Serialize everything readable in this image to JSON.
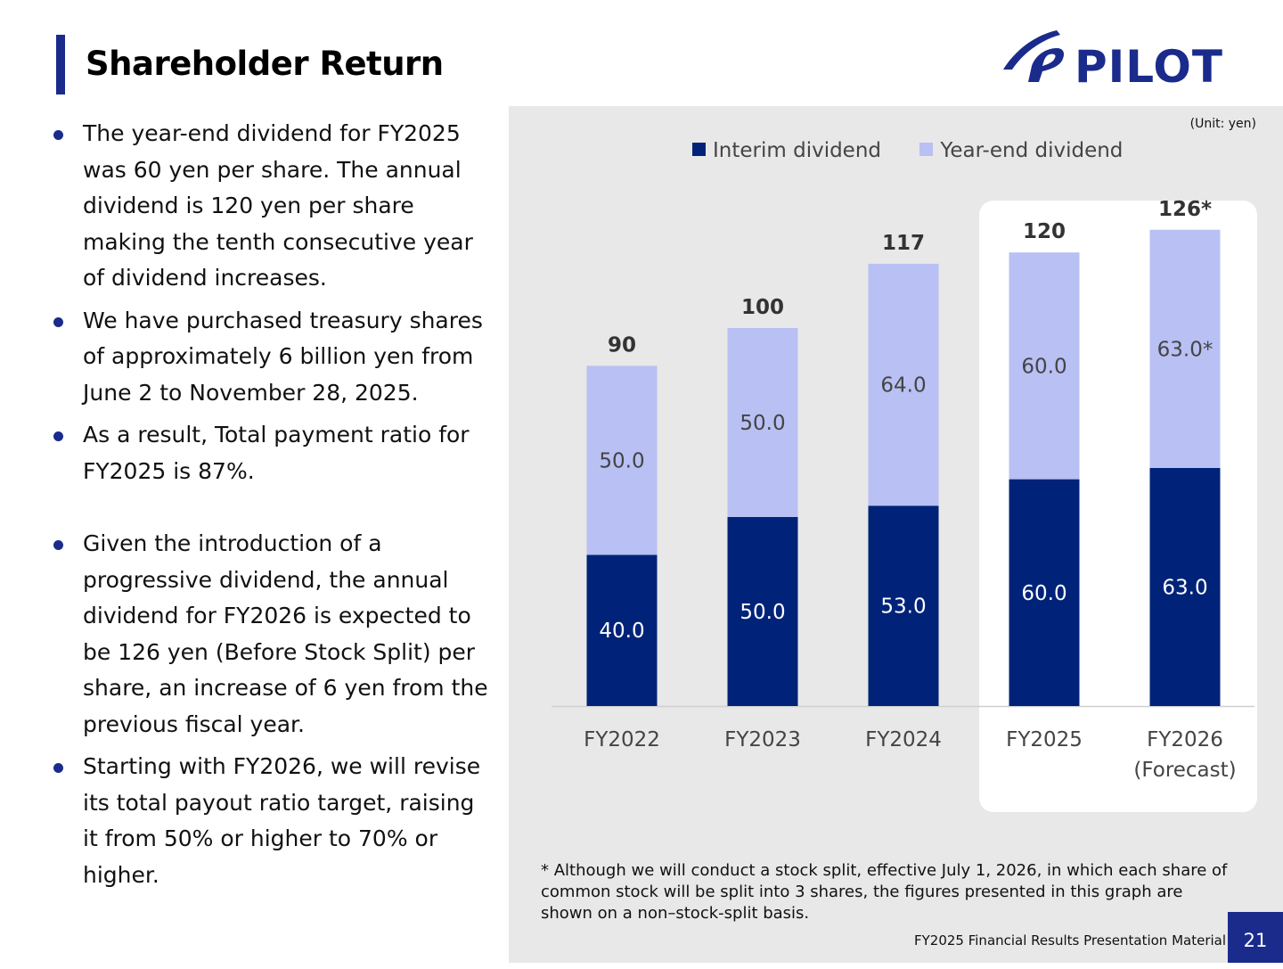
{
  "header": {
    "title": "Shareholder Return",
    "logo_text": "PILOT"
  },
  "bullets": [
    "The year-end dividend for FY2025 was 60 yen per share. The annual dividend is 120 yen per share making the tenth consecutive year of dividend increases.",
    "We have purchased treasury shares of approximately 6 billion yen from June 2 to November 28, 2025.",
    "As a result, Total payment ratio for FY2025 is 87%.",
    "Given the introduction of a progressive dividend, the annual dividend for FY2026 is expected to be 126 yen (Before Stock Split) per share, an increase of 6 yen from the previous fiscal year.",
    "Starting with FY2026, we will revise its total payout ratio target, raising it from 50% or higher to 70% or higher."
  ],
  "chart_data": {
    "type": "bar",
    "stacked": true,
    "unit_label": "(Unit: yen)",
    "categories": [
      "FY2022",
      "FY2023",
      "FY2024",
      "FY2025",
      "FY2026\n(Forecast)"
    ],
    "series": [
      {
        "name": "Interim dividend",
        "values": [
          40.0,
          50.0,
          53.0,
          60.0,
          63.0
        ],
        "labels": [
          "40.0",
          "50.0",
          "53.0",
          "60.0",
          "63.0"
        ],
        "color": "#002379"
      },
      {
        "name": "Year-end dividend",
        "values": [
          50.0,
          50.0,
          64.0,
          60.0,
          63.0
        ],
        "labels": [
          "50.0",
          "50.0",
          "64.0",
          "60.0",
          "63.0*"
        ],
        "color": "#b8c0f4"
      }
    ],
    "totals": [
      "90",
      "100",
      "117",
      "120",
      "126*"
    ],
    "highlight_categories": [
      "FY2025",
      "FY2026\n(Forecast)"
    ],
    "legend_position": "top",
    "grid": false,
    "ylim": [
      0,
      130
    ]
  },
  "footnote": "*  Although we will conduct a stock split, effective July 1, 2026, in which each share of common stock will be split into 3 shares, the figures presented in this graph are shown on a non–stock-split basis.",
  "footer": {
    "text": "FY2025 Financial Results Presentation Material",
    "page": "21"
  },
  "colors": {
    "brand": "#1a2b8c",
    "interim": "#002379",
    "year_end": "#b8c0f4",
    "panel": "#e8e8e8"
  }
}
